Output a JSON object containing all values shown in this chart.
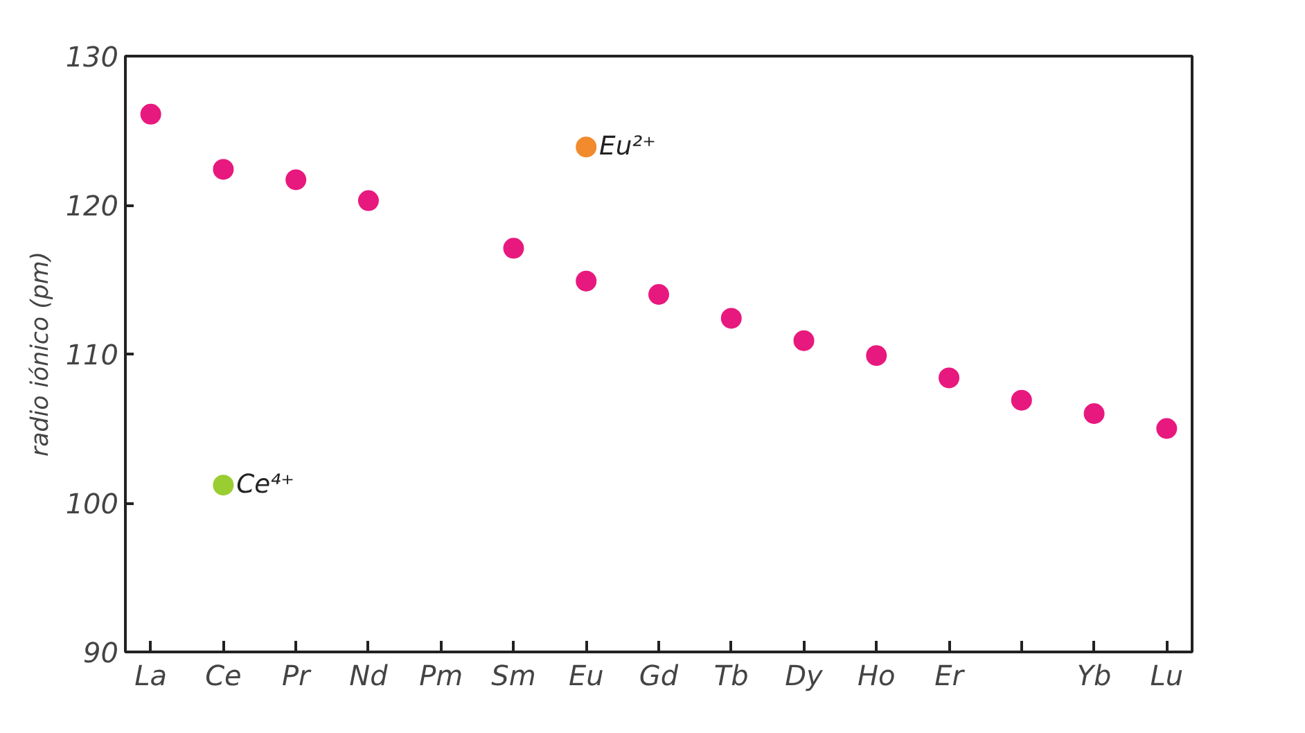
{
  "chart_data": {
    "type": "scatter",
    "ylabel": "radio iónico (pm)",
    "categories": [
      "La",
      "Ce",
      "Pr",
      "Nd",
      "Pm",
      "Sm",
      "Eu",
      "Gd",
      "Tb",
      "Dy",
      "Ho",
      "Er",
      null,
      "Yb",
      "Lu"
    ],
    "series": [
      {
        "color": "#e8197e",
        "values": [
          126.1,
          122.4,
          121.7,
          120.3,
          null,
          117.1,
          114.9,
          114.0,
          112.4,
          110.9,
          109.9,
          108.4,
          106.9,
          106.0,
          105.0
        ]
      },
      {
        "name": "Eu²⁺",
        "color": "#f28a2e",
        "values": [
          null,
          null,
          null,
          null,
          null,
          null,
          123.9,
          null,
          null,
          null,
          null,
          null,
          null,
          null,
          null
        ]
      },
      {
        "name": "Ce⁴⁺",
        "color": "#9acd32",
        "values": [
          null,
          101.2,
          null,
          null,
          null,
          null,
          null,
          null,
          null,
          null,
          null,
          null,
          null,
          null,
          null
        ]
      }
    ],
    "ylim": [
      90,
      130
    ],
    "yticks": [
      90,
      100,
      110,
      120,
      130
    ],
    "grid": false,
    "marker": "circle"
  }
}
